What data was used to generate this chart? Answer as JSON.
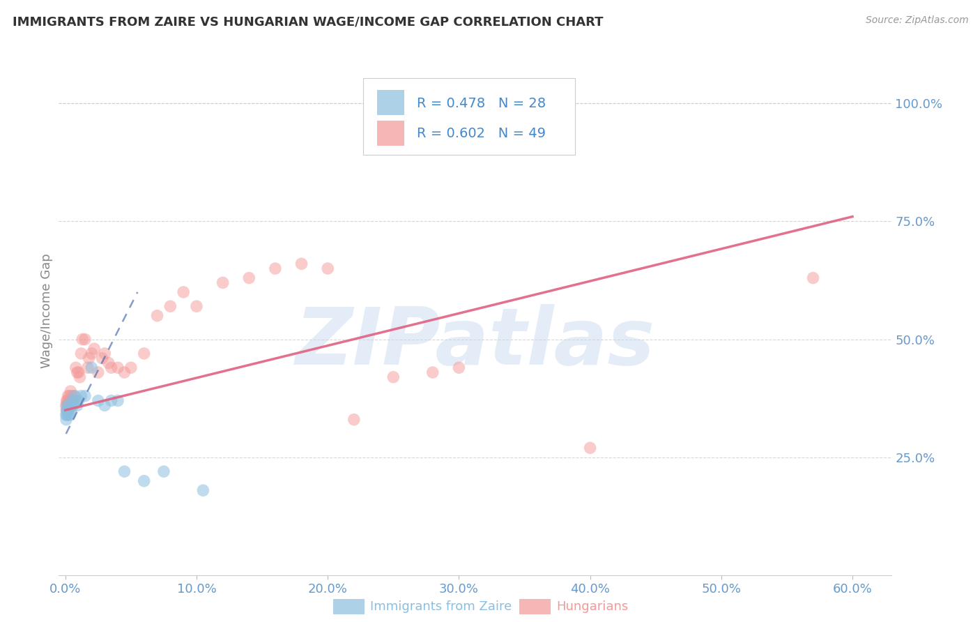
{
  "title": "IMMIGRANTS FROM ZAIRE VS HUNGARIAN WAGE/INCOME GAP CORRELATION CHART",
  "source": "Source: ZipAtlas.com",
  "ylabel": "Wage/Income Gap",
  "x_tick_labels": [
    "0.0%",
    "10.0%",
    "20.0%",
    "30.0%",
    "40.0%",
    "50.0%",
    "60.0%"
  ],
  "x_tick_values": [
    0,
    10,
    20,
    30,
    40,
    50,
    60
  ],
  "y_tick_labels": [
    "25.0%",
    "50.0%",
    "75.0%",
    "100.0%"
  ],
  "y_tick_values": [
    25,
    50,
    75,
    100
  ],
  "xlim": [
    -0.5,
    63
  ],
  "ylim": [
    0,
    112
  ],
  "legend_label1": "R = 0.478   N = 28",
  "legend_label2": "R = 0.602   N = 49",
  "blue_scatter": [
    [
      0.05,
      34
    ],
    [
      0.07,
      33
    ],
    [
      0.1,
      35
    ],
    [
      0.12,
      34
    ],
    [
      0.15,
      36
    ],
    [
      0.18,
      35
    ],
    [
      0.2,
      34
    ],
    [
      0.25,
      35
    ],
    [
      0.3,
      36
    ],
    [
      0.35,
      34
    ],
    [
      0.4,
      35
    ],
    [
      0.5,
      37
    ],
    [
      0.6,
      36
    ],
    [
      0.7,
      38
    ],
    [
      0.8,
      37
    ],
    [
      0.9,
      36
    ],
    [
      1.0,
      37
    ],
    [
      1.2,
      38
    ],
    [
      1.5,
      38
    ],
    [
      2.0,
      44
    ],
    [
      2.5,
      37
    ],
    [
      3.0,
      36
    ],
    [
      3.5,
      37
    ],
    [
      4.0,
      37
    ],
    [
      4.5,
      22
    ],
    [
      6.0,
      20
    ],
    [
      7.5,
      22
    ],
    [
      10.5,
      18
    ]
  ],
  "pink_scatter": [
    [
      0.05,
      36
    ],
    [
      0.08,
      35
    ],
    [
      0.1,
      37
    ],
    [
      0.12,
      36
    ],
    [
      0.15,
      37
    ],
    [
      0.18,
      36
    ],
    [
      0.2,
      38
    ],
    [
      0.25,
      37
    ],
    [
      0.3,
      38
    ],
    [
      0.35,
      37
    ],
    [
      0.4,
      39
    ],
    [
      0.5,
      38
    ],
    [
      0.6,
      37
    ],
    [
      0.7,
      38
    ],
    [
      0.8,
      44
    ],
    [
      0.9,
      43
    ],
    [
      1.0,
      43
    ],
    [
      1.1,
      42
    ],
    [
      1.2,
      47
    ],
    [
      1.3,
      50
    ],
    [
      1.5,
      50
    ],
    [
      1.7,
      44
    ],
    [
      1.8,
      46
    ],
    [
      2.0,
      47
    ],
    [
      2.2,
      48
    ],
    [
      2.5,
      43
    ],
    [
      2.8,
      46
    ],
    [
      3.0,
      47
    ],
    [
      3.3,
      45
    ],
    [
      3.5,
      44
    ],
    [
      4.0,
      44
    ],
    [
      4.5,
      43
    ],
    [
      5.0,
      44
    ],
    [
      6.0,
      47
    ],
    [
      7.0,
      55
    ],
    [
      8.0,
      57
    ],
    [
      9.0,
      60
    ],
    [
      10.0,
      57
    ],
    [
      12.0,
      62
    ],
    [
      14.0,
      63
    ],
    [
      16.0,
      65
    ],
    [
      18.0,
      66
    ],
    [
      20.0,
      65
    ],
    [
      22.0,
      33
    ],
    [
      25.0,
      42
    ],
    [
      28.0,
      43
    ],
    [
      30.0,
      44
    ],
    [
      40.0,
      27
    ],
    [
      57.0,
      63
    ]
  ],
  "blue_line_x": [
    0.05,
    5.5
  ],
  "blue_line_y": [
    30,
    60
  ],
  "pink_line_x": [
    0,
    60
  ],
  "pink_line_y": [
    35,
    76
  ],
  "watermark": "ZIPatlas",
  "bg_color": "#ffffff",
  "scatter_blue": "#8bbfdf",
  "scatter_pink": "#f49898",
  "line_blue": "#4466aa",
  "line_pink": "#e06080",
  "grid_color": "#cccccc",
  "tick_color": "#6699cc",
  "title_color": "#333333",
  "source_color": "#999999",
  "legend_text_color": "#4488cc",
  "ylabel_color": "#888888"
}
